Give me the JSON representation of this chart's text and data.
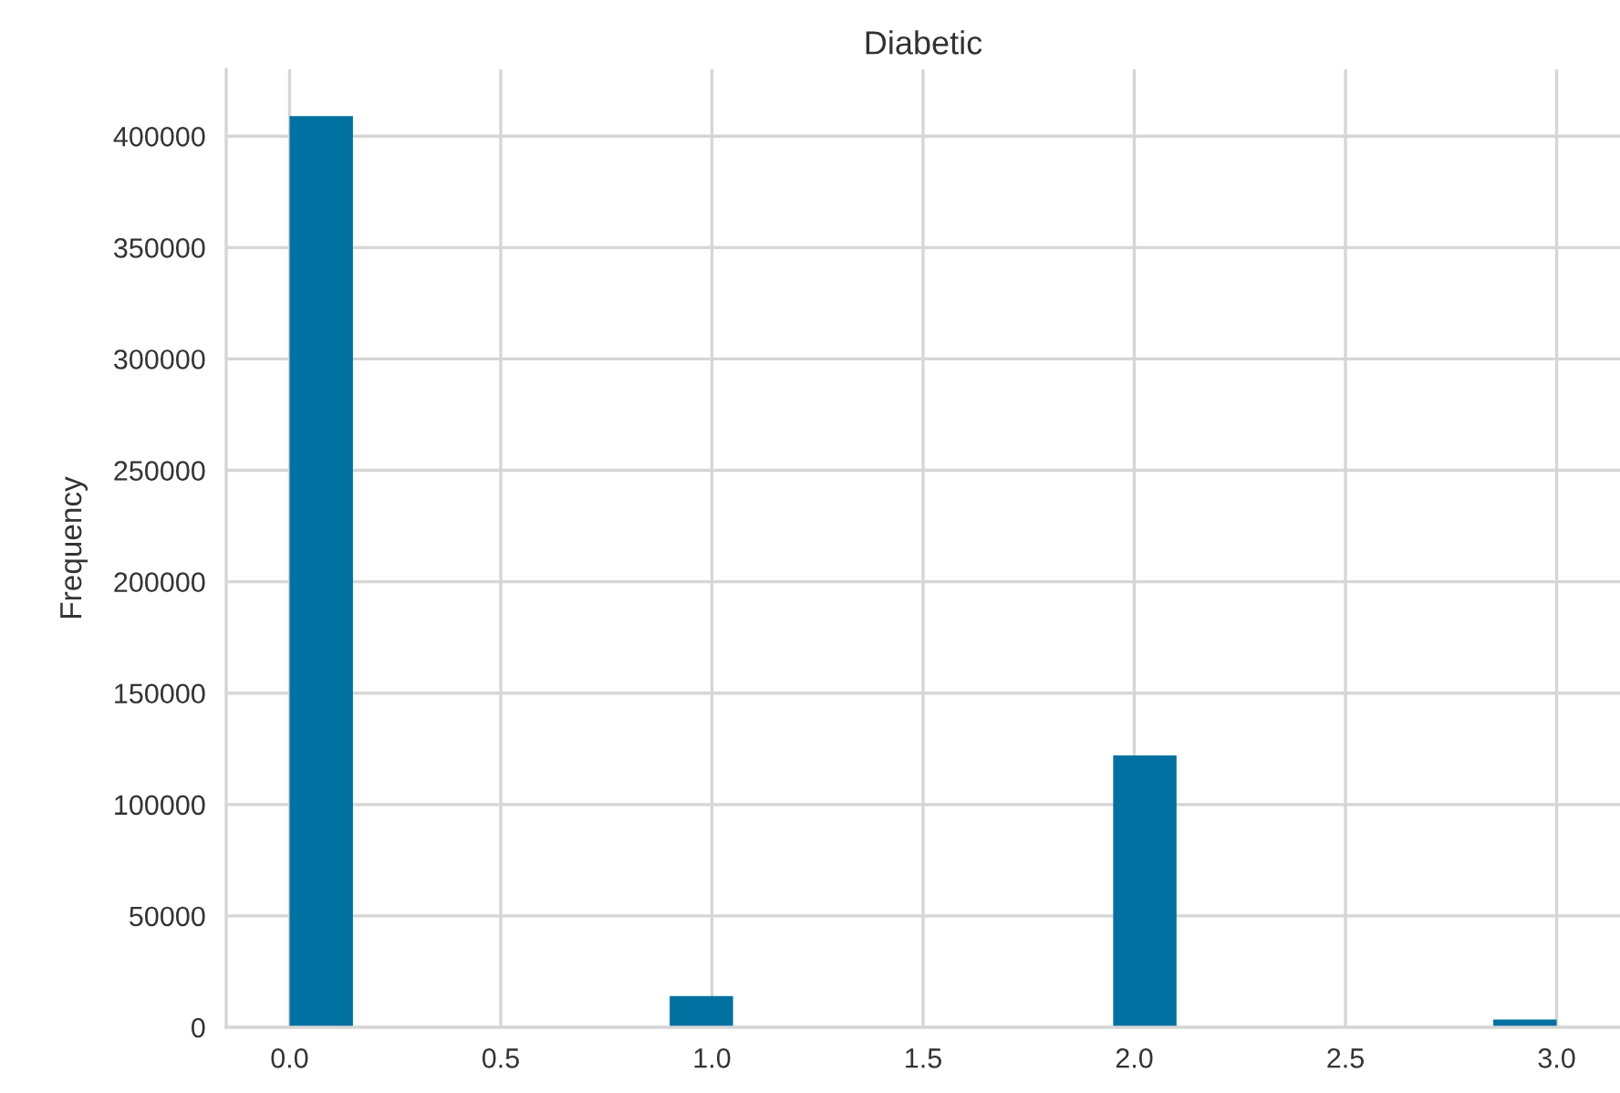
{
  "chart_data": {
    "type": "histogram",
    "title": "Diabetic",
    "ylabel": "Frequency",
    "bins": [
      0,
      0.15,
      0.3,
      0.45,
      0.6,
      0.75,
      0.9,
      1.05,
      1.2,
      1.35,
      1.5,
      1.65,
      1.8,
      1.95,
      2.1,
      2.25,
      2.4,
      2.55,
      2.7,
      2.85,
      3.0
    ],
    "values": [
      409000,
      0,
      0,
      0,
      0,
      0,
      14000,
      0,
      0,
      0,
      0,
      0,
      0,
      122000,
      0,
      0,
      0,
      0,
      0,
      3500
    ],
    "color": "#0071a1",
    "xlim": [
      -0.15,
      3.15
    ],
    "ylim": [
      0,
      430000
    ],
    "xticks": [
      {
        "value": 0,
        "label": "0.0"
      },
      {
        "value": 0.5,
        "label": "0.5"
      },
      {
        "value": 1,
        "label": "1.0"
      },
      {
        "value": 1.5,
        "label": "1.5"
      },
      {
        "value": 2,
        "label": "2.0"
      },
      {
        "value": 2.5,
        "label": "2.5"
      },
      {
        "value": 3,
        "label": "3.0"
      }
    ],
    "yticks": [
      0,
      50000,
      100000,
      150000,
      200000,
      250000,
      300000,
      350000,
      400000
    ],
    "grid": true
  }
}
